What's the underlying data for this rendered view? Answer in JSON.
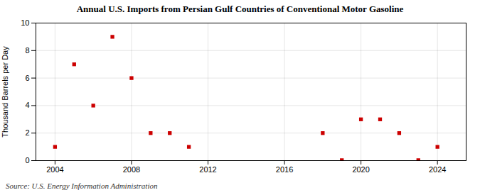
{
  "chart_data": {
    "type": "scatter",
    "title": "Annual U.S. Imports from Persian Gulf Countries of Conventional Motor Gasoline",
    "ylabel": "Thousand Barrels per Day",
    "source": "Source: U.S. Energy Information Administration",
    "x": [
      2004,
      2005,
      2006,
      2007,
      2008,
      2009,
      2010,
      2011,
      2018,
      2019,
      2020,
      2021,
      2022,
      2023,
      2024
    ],
    "values": [
      1,
      7,
      4,
      9,
      6,
      2,
      2,
      1,
      2,
      0.03,
      3,
      3,
      2,
      0.03,
      1
    ],
    "color": "#cc0000",
    "marker": "square",
    "xlim": [
      2003.0,
      2025.5
    ],
    "ylim": [
      0,
      10
    ],
    "xticks": [
      2004,
      2008,
      2012,
      2016,
      2020,
      2024
    ],
    "yticks": [
      0,
      2,
      4,
      6,
      8,
      10
    ],
    "grid": true
  }
}
